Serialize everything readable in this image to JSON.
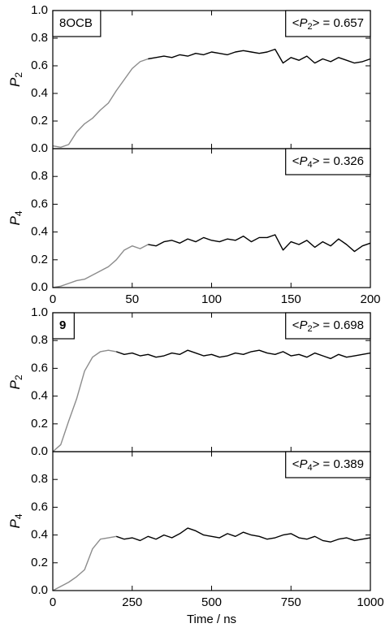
{
  "chart_data": [
    {
      "type": "line",
      "label": "8OCB",
      "annotation": [
        "<",
        "P",
        "2",
        "> = 0.657"
      ],
      "ylabel": [
        "P",
        "2"
      ],
      "xlim": [
        0,
        200
      ],
      "xticks": [
        0,
        50,
        100,
        150,
        200
      ],
      "show_xtick_labels": false,
      "ylim": [
        0,
        1
      ],
      "yticks": [
        {
          "value": 0,
          "label": "0.0"
        },
        {
          "value": 0.2,
          "label": "0.2"
        },
        {
          "value": 0.4,
          "label": "0.4"
        },
        {
          "value": 0.6,
          "label": "0.6"
        },
        {
          "value": 0.8,
          "label": "0.8"
        },
        {
          "value": 1,
          "label": "1.0"
        }
      ],
      "series": [
        {
          "color": "#8c8c8c",
          "x": [
            0,
            5,
            10,
            15,
            20,
            25,
            30,
            35,
            40,
            45,
            50,
            55,
            60
          ],
          "values": [
            0.02,
            0.01,
            0.03,
            0.12,
            0.18,
            0.22,
            0.28,
            0.33,
            0.42,
            0.5,
            0.58,
            0.63,
            0.65
          ]
        },
        {
          "color": "#000000",
          "x": [
            60,
            65,
            70,
            75,
            80,
            85,
            90,
            95,
            100,
            105,
            110,
            115,
            120,
            125,
            130,
            135,
            140,
            145,
            150,
            155,
            160,
            165,
            170,
            175,
            180,
            185,
            190,
            195,
            200
          ],
          "values": [
            0.65,
            0.66,
            0.67,
            0.66,
            0.68,
            0.67,
            0.69,
            0.68,
            0.7,
            0.69,
            0.68,
            0.7,
            0.71,
            0.7,
            0.69,
            0.7,
            0.72,
            0.62,
            0.66,
            0.64,
            0.67,
            0.62,
            0.65,
            0.63,
            0.66,
            0.64,
            0.62,
            0.63,
            0.65
          ]
        }
      ]
    },
    {
      "type": "line",
      "annotation": [
        "<",
        "P",
        "4",
        "> = 0.326"
      ],
      "ylabel": [
        "P",
        "4"
      ],
      "xlim": [
        0,
        200
      ],
      "xticks": [
        0,
        50,
        100,
        150,
        200
      ],
      "show_xtick_labels": true,
      "ylim": [
        0,
        1
      ],
      "yticks": [
        {
          "value": 0,
          "label": "0.0"
        },
        {
          "value": 0.2,
          "label": "0.2"
        },
        {
          "value": 0.4,
          "label": "0.4"
        },
        {
          "value": 0.6,
          "label": "0.6"
        },
        {
          "value": 0.8,
          "label": "0.8"
        }
      ],
      "series": [
        {
          "color": "#8c8c8c",
          "x": [
            0,
            5,
            10,
            15,
            20,
            25,
            30,
            35,
            40,
            45,
            50,
            55,
            60
          ],
          "values": [
            0.0,
            0.01,
            0.03,
            0.05,
            0.06,
            0.09,
            0.12,
            0.15,
            0.2,
            0.27,
            0.3,
            0.28,
            0.31
          ]
        },
        {
          "color": "#000000",
          "x": [
            60,
            65,
            70,
            75,
            80,
            85,
            90,
            95,
            100,
            105,
            110,
            115,
            120,
            125,
            130,
            135,
            140,
            145,
            150,
            155,
            160,
            165,
            170,
            175,
            180,
            185,
            190,
            195,
            200
          ],
          "values": [
            0.31,
            0.3,
            0.33,
            0.34,
            0.32,
            0.35,
            0.33,
            0.36,
            0.34,
            0.33,
            0.35,
            0.34,
            0.37,
            0.33,
            0.36,
            0.36,
            0.38,
            0.27,
            0.33,
            0.31,
            0.34,
            0.29,
            0.33,
            0.3,
            0.35,
            0.31,
            0.26,
            0.3,
            0.32
          ]
        }
      ]
    },
    {
      "type": "line",
      "label": "9",
      "annotation": [
        "<",
        "P",
        "2",
        "> = 0.698"
      ],
      "ylabel": [
        "P",
        "2"
      ],
      "xlim": [
        0,
        1000
      ],
      "xticks": [
        0,
        250,
        500,
        750,
        1000
      ],
      "show_xtick_labels": false,
      "ylim": [
        0,
        1
      ],
      "yticks": [
        {
          "value": 0,
          "label": "0.0"
        },
        {
          "value": 0.2,
          "label": "0.2"
        },
        {
          "value": 0.4,
          "label": "0.4"
        },
        {
          "value": 0.6,
          "label": "0.6"
        },
        {
          "value": 0.8,
          "label": "0.8"
        },
        {
          "value": 1,
          "label": "1.0"
        }
      ],
      "series": [
        {
          "color": "#8c8c8c",
          "x": [
            0,
            25,
            50,
            75,
            100,
            125,
            150,
            175,
            200
          ],
          "values": [
            0.0,
            0.05,
            0.22,
            0.38,
            0.58,
            0.68,
            0.72,
            0.73,
            0.72
          ]
        },
        {
          "color": "#000000",
          "x": [
            200,
            225,
            250,
            275,
            300,
            325,
            350,
            375,
            400,
            425,
            450,
            475,
            500,
            525,
            550,
            575,
            600,
            625,
            650,
            675,
            700,
            725,
            750,
            775,
            800,
            825,
            850,
            875,
            900,
            925,
            950,
            975,
            1000
          ],
          "values": [
            0.72,
            0.7,
            0.71,
            0.69,
            0.7,
            0.68,
            0.69,
            0.71,
            0.7,
            0.73,
            0.71,
            0.69,
            0.7,
            0.68,
            0.69,
            0.71,
            0.7,
            0.72,
            0.73,
            0.71,
            0.7,
            0.72,
            0.69,
            0.7,
            0.68,
            0.71,
            0.69,
            0.67,
            0.7,
            0.68,
            0.69,
            0.7,
            0.71
          ]
        }
      ]
    },
    {
      "type": "line",
      "annotation": [
        "<",
        "P",
        "4",
        "> = 0.389"
      ],
      "ylabel": [
        "P",
        "4"
      ],
      "xlabel": "Time / ns",
      "xlim": [
        0,
        1000
      ],
      "xticks": [
        0,
        250,
        500,
        750,
        1000
      ],
      "show_xtick_labels": true,
      "ylim": [
        0,
        1
      ],
      "yticks": [
        {
          "value": 0,
          "label": "0.0"
        },
        {
          "value": 0.2,
          "label": "0.2"
        },
        {
          "value": 0.4,
          "label": "0.4"
        },
        {
          "value": 0.6,
          "label": "0.6"
        },
        {
          "value": 0.8,
          "label": "0.8"
        }
      ],
      "series": [
        {
          "color": "#8c8c8c",
          "x": [
            0,
            25,
            50,
            75,
            100,
            125,
            150,
            175,
            200
          ],
          "values": [
            0.0,
            0.03,
            0.06,
            0.1,
            0.15,
            0.3,
            0.37,
            0.38,
            0.39
          ]
        },
        {
          "color": "#000000",
          "x": [
            200,
            225,
            250,
            275,
            300,
            325,
            350,
            375,
            400,
            425,
            450,
            475,
            500,
            525,
            550,
            575,
            600,
            625,
            650,
            675,
            700,
            725,
            750,
            775,
            800,
            825,
            850,
            875,
            900,
            925,
            950,
            975,
            1000
          ],
          "values": [
            0.39,
            0.37,
            0.38,
            0.36,
            0.39,
            0.37,
            0.4,
            0.38,
            0.41,
            0.45,
            0.43,
            0.4,
            0.39,
            0.38,
            0.41,
            0.39,
            0.42,
            0.4,
            0.39,
            0.37,
            0.38,
            0.4,
            0.41,
            0.38,
            0.37,
            0.39,
            0.36,
            0.35,
            0.37,
            0.38,
            0.36,
            0.37,
            0.38
          ]
        }
      ]
    }
  ]
}
